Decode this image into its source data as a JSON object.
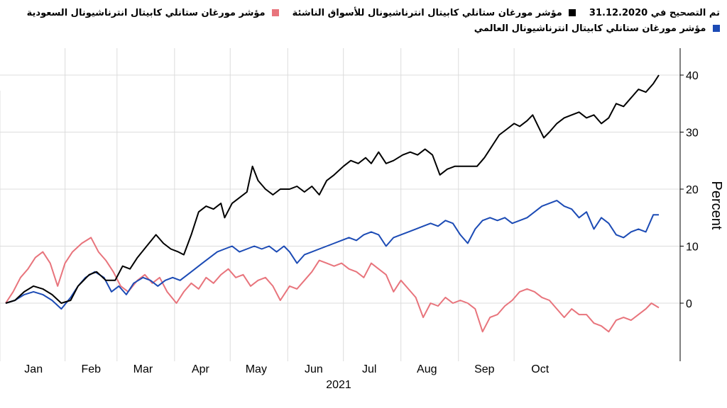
{
  "legend": {
    "title_prefix": "تم التصحيح في",
    "base_date": "31.12.2020"
  },
  "chart_data": {
    "type": "line",
    "xlabel": "2021",
    "ylabel": "Percent",
    "ylim": [
      -10,
      45
    ],
    "yticks": [
      0,
      10,
      20,
      30,
      40
    ],
    "grid": true,
    "legend_position": "top-right",
    "x_tick_labels": [
      "Jan",
      "Feb",
      "Mar",
      "Apr",
      "May",
      "Jun",
      "Jul",
      "Aug",
      "Sep",
      "Oct"
    ],
    "x_tick_positions": [
      "2021-01-15",
      "2021-02-15",
      "2021-03-15",
      "2021-04-15",
      "2021-05-15",
      "2021-06-15",
      "2021-07-15",
      "2021-08-15",
      "2021-09-15",
      "2021-10-15"
    ],
    "gridline_dates": [
      "2021-02-01",
      "2021-03-01",
      "2021-04-01",
      "2021-05-01",
      "2021-06-01",
      "2021-07-01",
      "2021-08-01",
      "2021-09-01",
      "2021-10-01"
    ],
    "series": [
      {
        "name": "مؤشر مورغان ستانلي كابيتال انترناشيونال للأسواق الناشئة",
        "color": "#000000",
        "points": [
          [
            "2020-12-31",
            0
          ],
          [
            "2021-01-05",
            0.5
          ],
          [
            "2021-01-10",
            2.0
          ],
          [
            "2021-01-15",
            3.0
          ],
          [
            "2021-01-20",
            2.5
          ],
          [
            "2021-01-25",
            1.5
          ],
          [
            "2021-01-30",
            0.0
          ],
          [
            "2021-02-04",
            0.5
          ],
          [
            "2021-02-08",
            3.0
          ],
          [
            "2021-02-14",
            5.0
          ],
          [
            "2021-02-18",
            5.5
          ],
          [
            "2021-02-23",
            4.0
          ],
          [
            "2021-02-28",
            4.0
          ],
          [
            "2021-03-04",
            6.5
          ],
          [
            "2021-03-08",
            6.0
          ],
          [
            "2021-03-12",
            8.0
          ],
          [
            "2021-03-17",
            10.0
          ],
          [
            "2021-03-22",
            12.0
          ],
          [
            "2021-03-26",
            10.5
          ],
          [
            "2021-03-30",
            9.5
          ],
          [
            "2021-04-03",
            9.0
          ],
          [
            "2021-04-06",
            8.5
          ],
          [
            "2021-04-10",
            12.0
          ],
          [
            "2021-04-14",
            16.0
          ],
          [
            "2021-04-18",
            17.0
          ],
          [
            "2021-04-22",
            16.5
          ],
          [
            "2021-04-26",
            17.5
          ],
          [
            "2021-04-28",
            15.0
          ],
          [
            "2021-05-02",
            17.5
          ],
          [
            "2021-05-06",
            18.5
          ],
          [
            "2021-05-10",
            19.5
          ],
          [
            "2021-05-13",
            24.0
          ],
          [
            "2021-05-16",
            21.5
          ],
          [
            "2021-05-20",
            20.0
          ],
          [
            "2021-05-24",
            19.0
          ],
          [
            "2021-05-28",
            20.0
          ],
          [
            "2021-06-02",
            20.0
          ],
          [
            "2021-06-06",
            20.5
          ],
          [
            "2021-06-10",
            19.5
          ],
          [
            "2021-06-14",
            20.5
          ],
          [
            "2021-06-18",
            19.0
          ],
          [
            "2021-06-22",
            21.5
          ],
          [
            "2021-06-26",
            22.5
          ],
          [
            "2021-07-01",
            24.0
          ],
          [
            "2021-07-05",
            25.0
          ],
          [
            "2021-07-09",
            24.5
          ],
          [
            "2021-07-13",
            25.5
          ],
          [
            "2021-07-16",
            24.5
          ],
          [
            "2021-07-20",
            26.5
          ],
          [
            "2021-07-24",
            24.5
          ],
          [
            "2021-07-28",
            25.0
          ],
          [
            "2021-08-02",
            26.0
          ],
          [
            "2021-08-06",
            26.5
          ],
          [
            "2021-08-10",
            26.0
          ],
          [
            "2021-08-14",
            27.0
          ],
          [
            "2021-08-18",
            26.0
          ],
          [
            "2021-08-22",
            22.5
          ],
          [
            "2021-08-26",
            23.5
          ],
          [
            "2021-08-30",
            24.0
          ],
          [
            "2021-09-03",
            24.0
          ],
          [
            "2021-09-07",
            24.0
          ],
          [
            "2021-09-11",
            24.0
          ],
          [
            "2021-09-15",
            25.5
          ],
          [
            "2021-09-19",
            27.5
          ],
          [
            "2021-09-23",
            29.5
          ],
          [
            "2021-09-27",
            30.5
          ],
          [
            "2021-10-01",
            31.5
          ],
          [
            "2021-10-04",
            31.0
          ],
          [
            "2021-10-08",
            32.0
          ],
          [
            "2021-10-11",
            33.0
          ],
          [
            "2021-10-14",
            31.0
          ],
          [
            "2021-10-17",
            29.0
          ],
          [
            "2021-10-20",
            30.0
          ],
          [
            "2021-10-24",
            31.5
          ],
          [
            "2021-10-28",
            32.5
          ],
          [
            "2021-11-01",
            33.0
          ],
          [
            "2021-11-05",
            33.5
          ],
          [
            "2021-11-09",
            32.5
          ],
          [
            "2021-11-13",
            33.0
          ],
          [
            "2021-11-17",
            31.5
          ],
          [
            "2021-11-21",
            32.5
          ],
          [
            "2021-11-25",
            35.0
          ],
          [
            "2021-11-29",
            34.5
          ],
          [
            "2021-12-03",
            36.0
          ],
          [
            "2021-12-07",
            37.5
          ],
          [
            "2021-12-11",
            37.0
          ],
          [
            "2021-12-15",
            38.5
          ],
          [
            "2021-12-18",
            40.0
          ]
        ]
      },
      {
        "name": "مؤشر مورغان ستانلي كابيتال انترناشيونال السعودية",
        "color": "#e8747c",
        "points": [
          [
            "2020-12-31",
            0
          ],
          [
            "2021-01-04",
            2.0
          ],
          [
            "2021-01-08",
            4.5
          ],
          [
            "2021-01-12",
            6.0
          ],
          [
            "2021-01-16",
            8.0
          ],
          [
            "2021-01-20",
            9.0
          ],
          [
            "2021-01-24",
            7.0
          ],
          [
            "2021-01-28",
            3.0
          ],
          [
            "2021-02-01",
            7.0
          ],
          [
            "2021-02-05",
            9.0
          ],
          [
            "2021-02-10",
            10.5
          ],
          [
            "2021-02-15",
            11.5
          ],
          [
            "2021-02-19",
            9.0
          ],
          [
            "2021-02-23",
            7.5
          ],
          [
            "2021-02-27",
            5.5
          ],
          [
            "2021-03-03",
            3.0
          ],
          [
            "2021-03-07",
            2.0
          ],
          [
            "2021-03-12",
            4.0
          ],
          [
            "2021-03-16",
            5.0
          ],
          [
            "2021-03-20",
            3.5
          ],
          [
            "2021-03-24",
            4.5
          ],
          [
            "2021-03-28",
            2.0
          ],
          [
            "2021-04-02",
            0.0
          ],
          [
            "2021-04-06",
            2.0
          ],
          [
            "2021-04-10",
            3.5
          ],
          [
            "2021-04-14",
            2.5
          ],
          [
            "2021-04-18",
            4.5
          ],
          [
            "2021-04-22",
            3.5
          ],
          [
            "2021-04-26",
            5.0
          ],
          [
            "2021-04-30",
            6.0
          ],
          [
            "2021-05-04",
            4.5
          ],
          [
            "2021-05-08",
            5.0
          ],
          [
            "2021-05-12",
            3.0
          ],
          [
            "2021-05-16",
            4.0
          ],
          [
            "2021-05-20",
            4.5
          ],
          [
            "2021-05-24",
            3.0
          ],
          [
            "2021-05-28",
            0.5
          ],
          [
            "2021-06-02",
            3.0
          ],
          [
            "2021-06-06",
            2.5
          ],
          [
            "2021-06-10",
            4.0
          ],
          [
            "2021-06-14",
            5.5
          ],
          [
            "2021-06-18",
            7.5
          ],
          [
            "2021-06-22",
            7.0
          ],
          [
            "2021-06-26",
            6.5
          ],
          [
            "2021-06-30",
            7.0
          ],
          [
            "2021-07-04",
            6.0
          ],
          [
            "2021-07-08",
            5.5
          ],
          [
            "2021-07-12",
            4.5
          ],
          [
            "2021-07-16",
            7.0
          ],
          [
            "2021-07-20",
            6.0
          ],
          [
            "2021-07-24",
            5.0
          ],
          [
            "2021-07-28",
            2.0
          ],
          [
            "2021-08-01",
            4.0
          ],
          [
            "2021-08-05",
            2.5
          ],
          [
            "2021-08-09",
            1.0
          ],
          [
            "2021-08-13",
            -2.5
          ],
          [
            "2021-08-17",
            0.0
          ],
          [
            "2021-08-21",
            -0.5
          ],
          [
            "2021-08-25",
            1.0
          ],
          [
            "2021-08-29",
            0.0
          ],
          [
            "2021-09-02",
            0.5
          ],
          [
            "2021-09-06",
            0.0
          ],
          [
            "2021-09-10",
            -1.0
          ],
          [
            "2021-09-14",
            -5.0
          ],
          [
            "2021-09-18",
            -2.5
          ],
          [
            "2021-09-22",
            -2.0
          ],
          [
            "2021-09-26",
            -0.5
          ],
          [
            "2021-09-30",
            0.5
          ],
          [
            "2021-10-04",
            2.0
          ],
          [
            "2021-10-08",
            2.5
          ],
          [
            "2021-10-12",
            2.0
          ],
          [
            "2021-10-16",
            1.0
          ],
          [
            "2021-10-20",
            0.5
          ],
          [
            "2021-10-24",
            -1.0
          ],
          [
            "2021-10-28",
            -2.5
          ],
          [
            "2021-11-01",
            -1.0
          ],
          [
            "2021-11-05",
            -2.0
          ],
          [
            "2021-11-09",
            -2.0
          ],
          [
            "2021-11-13",
            -3.5
          ],
          [
            "2021-11-17",
            -4.0
          ],
          [
            "2021-11-21",
            -5.0
          ],
          [
            "2021-11-25",
            -3.0
          ],
          [
            "2021-11-29",
            -2.5
          ],
          [
            "2021-12-03",
            -3.0
          ],
          [
            "2021-12-07",
            -2.0
          ],
          [
            "2021-12-11",
            -1.0
          ],
          [
            "2021-12-14",
            0.0
          ],
          [
            "2021-12-18",
            -0.8
          ]
        ]
      },
      {
        "name": "مؤشر مورغان ستانلي كابيتال انترناشيونال العالمي",
        "color": "#1c4bb5",
        "points": [
          [
            "2020-12-31",
            0
          ],
          [
            "2021-01-05",
            0.5
          ],
          [
            "2021-01-10",
            1.5
          ],
          [
            "2021-01-15",
            2.0
          ],
          [
            "2021-01-20",
            1.5
          ],
          [
            "2021-01-25",
            0.5
          ],
          [
            "2021-01-30",
            -1.0
          ],
          [
            "2021-02-04",
            1.0
          ],
          [
            "2021-02-08",
            3.0
          ],
          [
            "2021-02-12",
            4.5
          ],
          [
            "2021-02-17",
            5.5
          ],
          [
            "2021-02-22",
            4.5
          ],
          [
            "2021-02-26",
            2.0
          ],
          [
            "2021-03-02",
            3.0
          ],
          [
            "2021-03-06",
            1.5
          ],
          [
            "2021-03-10",
            3.5
          ],
          [
            "2021-03-15",
            4.5
          ],
          [
            "2021-03-19",
            4.0
          ],
          [
            "2021-03-23",
            3.0
          ],
          [
            "2021-03-27",
            4.0
          ],
          [
            "2021-03-31",
            4.5
          ],
          [
            "2021-04-04",
            4.0
          ],
          [
            "2021-04-08",
            5.0
          ],
          [
            "2021-04-12",
            6.0
          ],
          [
            "2021-04-16",
            7.0
          ],
          [
            "2021-04-20",
            8.0
          ],
          [
            "2021-04-24",
            9.0
          ],
          [
            "2021-04-28",
            9.5
          ],
          [
            "2021-05-02",
            10.0
          ],
          [
            "2021-05-06",
            9.0
          ],
          [
            "2021-05-10",
            9.5
          ],
          [
            "2021-05-14",
            10.0
          ],
          [
            "2021-05-18",
            9.5
          ],
          [
            "2021-05-22",
            10.0
          ],
          [
            "2021-05-26",
            9.0
          ],
          [
            "2021-05-30",
            10.0
          ],
          [
            "2021-06-02",
            9.0
          ],
          [
            "2021-06-06",
            7.0
          ],
          [
            "2021-06-10",
            8.5
          ],
          [
            "2021-06-14",
            9.0
          ],
          [
            "2021-06-18",
            9.5
          ],
          [
            "2021-06-22",
            10.0
          ],
          [
            "2021-06-26",
            10.5
          ],
          [
            "2021-06-30",
            11.0
          ],
          [
            "2021-07-04",
            11.5
          ],
          [
            "2021-07-08",
            11.0
          ],
          [
            "2021-07-12",
            12.0
          ],
          [
            "2021-07-16",
            12.5
          ],
          [
            "2021-07-20",
            12.0
          ],
          [
            "2021-07-24",
            10.0
          ],
          [
            "2021-07-28",
            11.5
          ],
          [
            "2021-08-01",
            12.0
          ],
          [
            "2021-08-05",
            12.5
          ],
          [
            "2021-08-09",
            13.0
          ],
          [
            "2021-08-13",
            13.5
          ],
          [
            "2021-08-17",
            14.0
          ],
          [
            "2021-08-21",
            13.5
          ],
          [
            "2021-08-25",
            14.5
          ],
          [
            "2021-08-29",
            14.0
          ],
          [
            "2021-09-02",
            12.0
          ],
          [
            "2021-09-06",
            10.5
          ],
          [
            "2021-09-10",
            13.0
          ],
          [
            "2021-09-14",
            14.5
          ],
          [
            "2021-09-18",
            15.0
          ],
          [
            "2021-09-22",
            14.5
          ],
          [
            "2021-09-26",
            15.0
          ],
          [
            "2021-09-30",
            14.0
          ],
          [
            "2021-10-04",
            14.5
          ],
          [
            "2021-10-08",
            15.0
          ],
          [
            "2021-10-12",
            16.0
          ],
          [
            "2021-10-16",
            17.0
          ],
          [
            "2021-10-20",
            17.5
          ],
          [
            "2021-10-24",
            18.0
          ],
          [
            "2021-10-28",
            17.0
          ],
          [
            "2021-11-01",
            16.5
          ],
          [
            "2021-11-05",
            15.0
          ],
          [
            "2021-11-09",
            16.0
          ],
          [
            "2021-11-13",
            13.0
          ],
          [
            "2021-11-17",
            15.0
          ],
          [
            "2021-11-21",
            14.0
          ],
          [
            "2021-11-25",
            12.0
          ],
          [
            "2021-11-29",
            11.5
          ],
          [
            "2021-12-03",
            12.5
          ],
          [
            "2021-12-07",
            13.0
          ],
          [
            "2021-12-11",
            12.5
          ],
          [
            "2021-12-15",
            15.5
          ],
          [
            "2021-12-18",
            15.5
          ]
        ]
      }
    ]
  }
}
